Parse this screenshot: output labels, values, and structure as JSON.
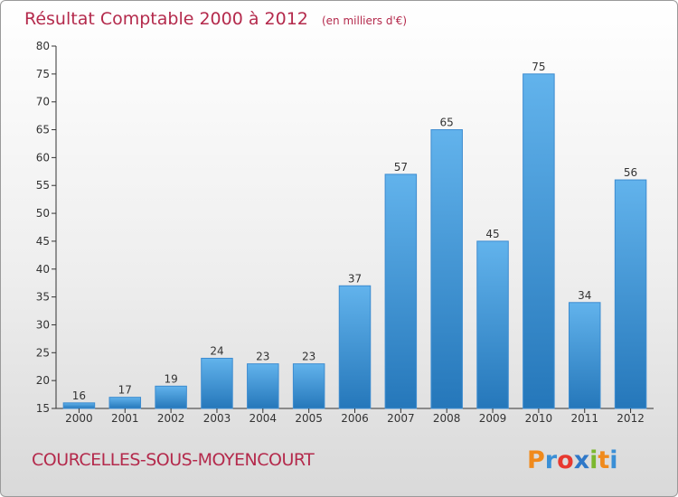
{
  "chart_data": {
    "type": "bar",
    "title": "Résultat Comptable 2000 à 2012",
    "unit": "(en milliers d'€)",
    "categories": [
      "2000",
      "2001",
      "2002",
      "2003",
      "2004",
      "2005",
      "2006",
      "2007",
      "2008",
      "2009",
      "2010",
      "2011",
      "2012"
    ],
    "values": [
      16,
      17,
      19,
      24,
      23,
      23,
      37,
      57,
      65,
      45,
      75,
      34,
      56
    ],
    "ylim": [
      15,
      80
    ],
    "yticks": [
      15,
      20,
      25,
      30,
      35,
      40,
      45,
      50,
      55,
      60,
      65,
      70,
      75,
      80
    ],
    "xlabel": "",
    "ylabel": "",
    "grid": false
  },
  "commune": "COURCELLES-SOUS-MOYENCOURT",
  "logo": {
    "letters": [
      "P",
      "r",
      "o",
      "x",
      "i",
      "t",
      "i"
    ],
    "colors": [
      "#f08a1c",
      "#3a8fd6",
      "#e8382f",
      "#2f78c8",
      "#7cb82f",
      "#f08a1c",
      "#3a8fd6"
    ]
  },
  "colors": {
    "bar_light": "#5dade8",
    "bar_dark": "#2a7fc0",
    "accent": "#b42a4c"
  }
}
